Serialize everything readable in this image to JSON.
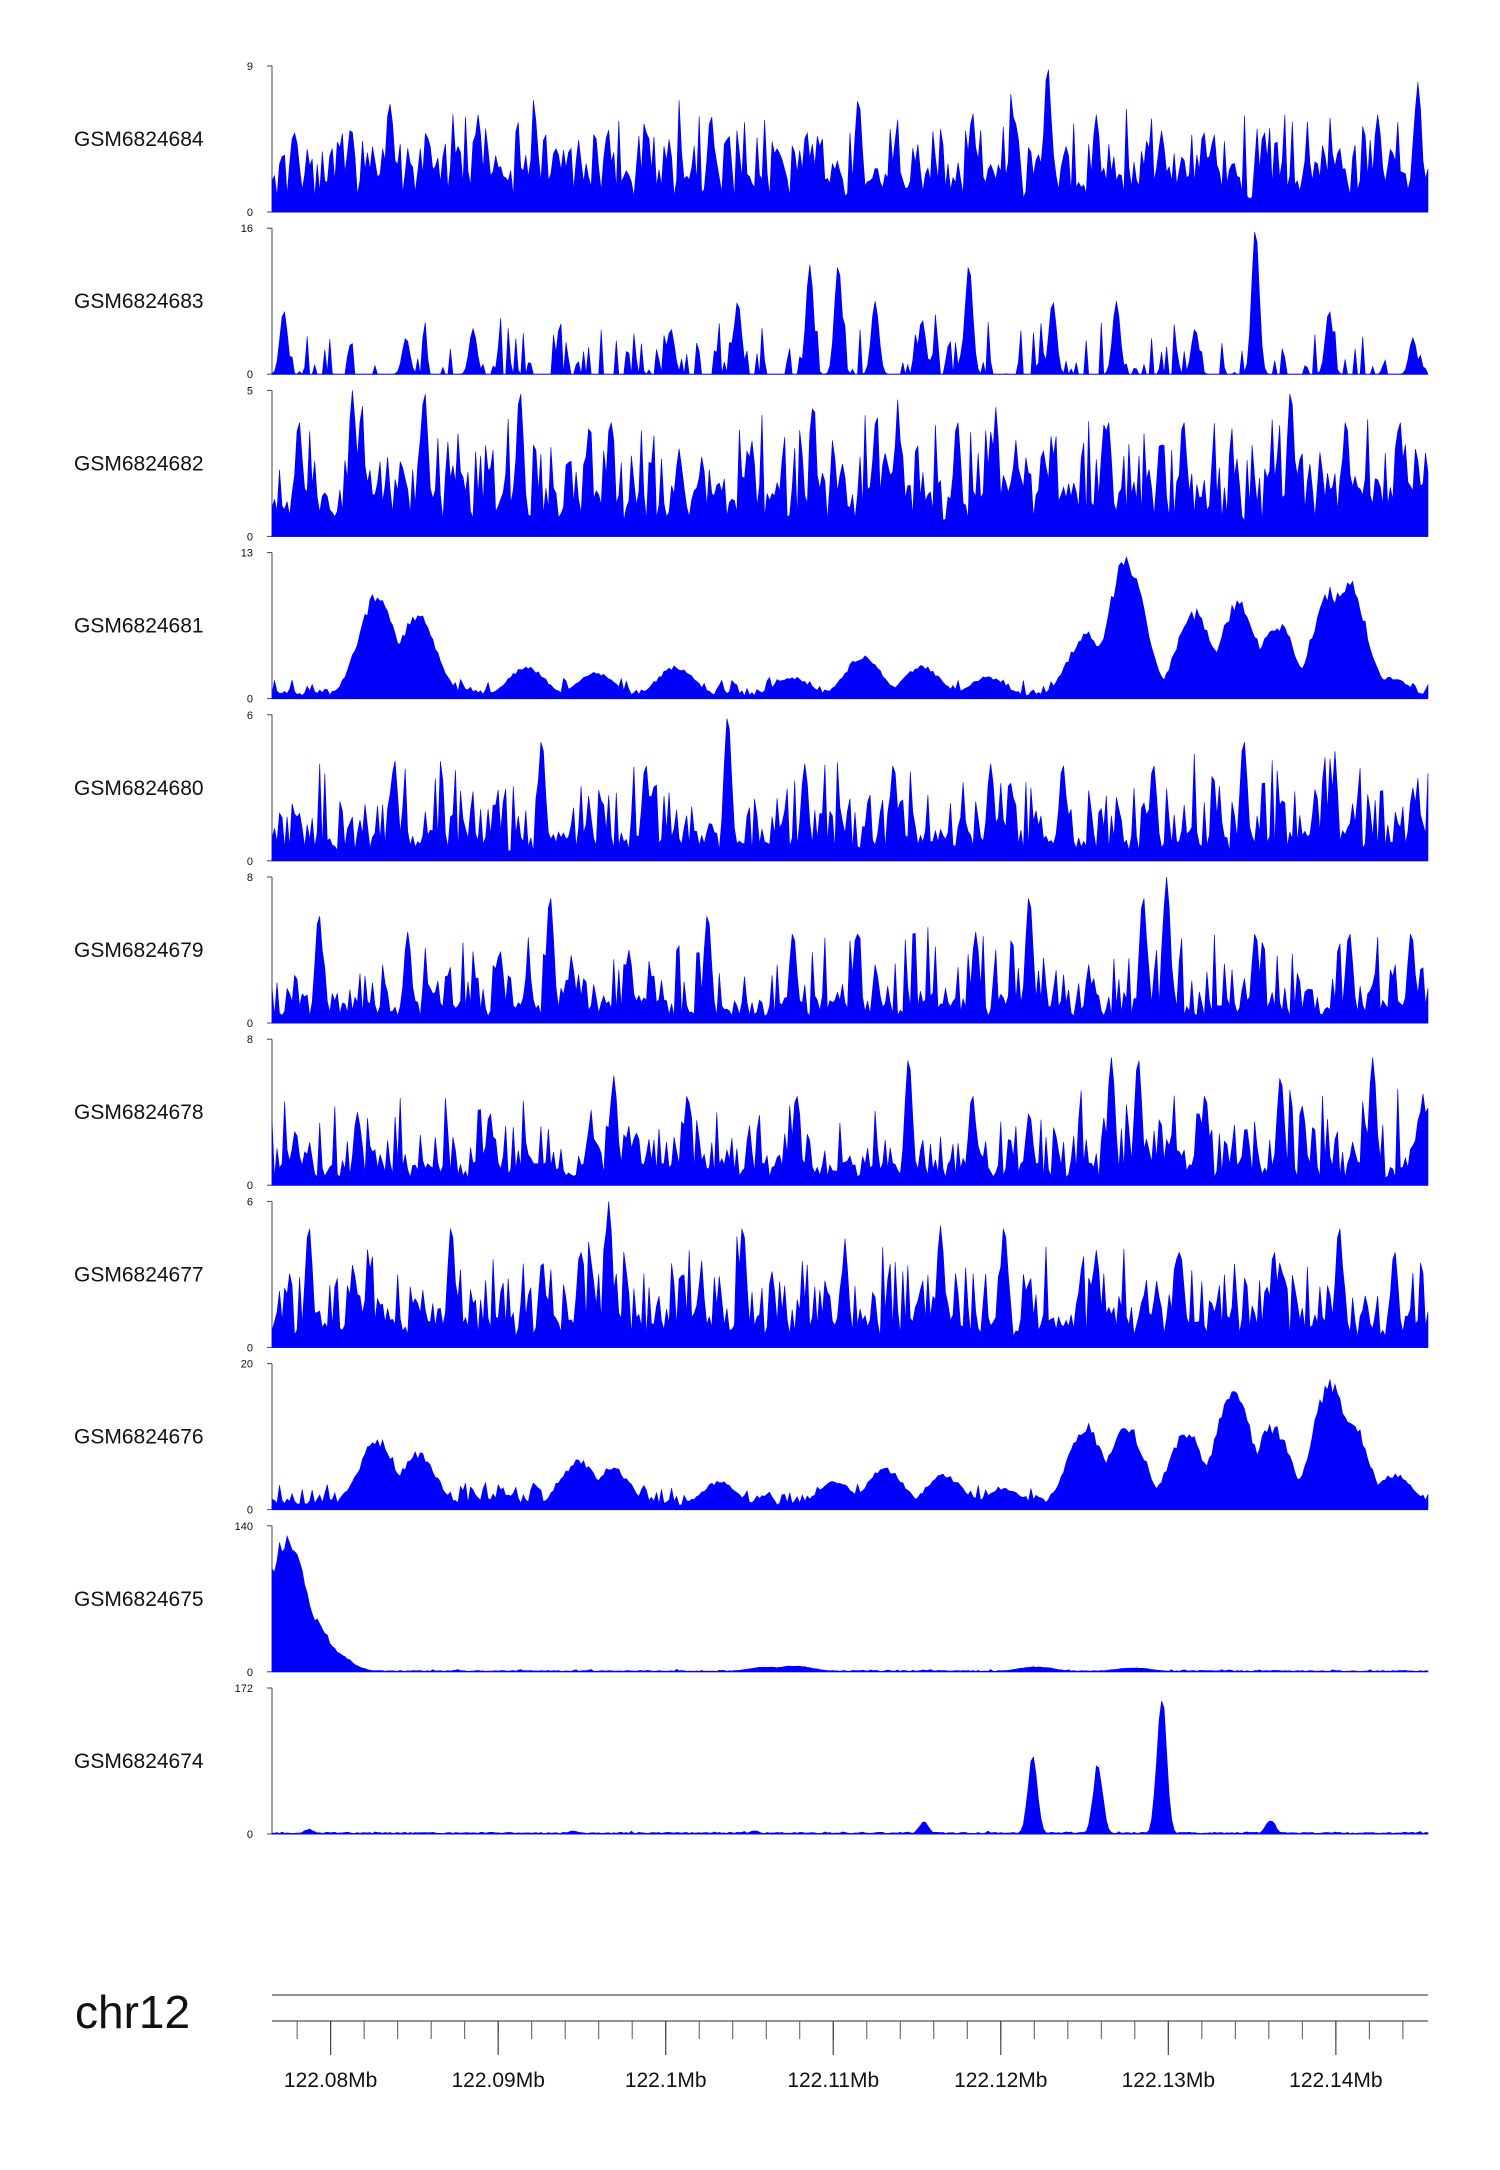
{
  "chart_data": {
    "type": "area",
    "fill_color": "#0000ff",
    "axis_color": "#444444",
    "x_range": [
      122.0765,
      122.1455
    ],
    "tracks": [
      {
        "name": "GSM6824684",
        "ylim": [
          0,
          9
        ],
        "peaks": [
          [
            122.0778,
            5
          ],
          [
            122.0811,
            4
          ],
          [
            122.0836,
            6
          ],
          [
            122.0888,
            6
          ],
          [
            122.0934,
            4
          ],
          [
            122.0989,
            5
          ],
          [
            122.1027,
            6
          ],
          [
            122.1066,
            4
          ],
          [
            122.1084,
            5
          ],
          [
            122.1084,
            5
          ],
          [
            122.1115,
            7
          ],
          [
            122.1183,
            6
          ],
          [
            122.1208,
            6
          ],
          [
            122.1228,
            9
          ],
          [
            122.1257,
            6
          ],
          [
            122.1296,
            5
          ],
          [
            122.1321,
            5
          ],
          [
            122.1357,
            5
          ],
          [
            122.1402,
            4
          ],
          [
            122.1425,
            6
          ],
          [
            122.1449,
            8
          ]
        ],
        "base": 2,
        "noise": 3.2,
        "spike_rate": 0.65,
        "seed": 11
      },
      {
        "name": "GSM6824683",
        "ylim": [
          0,
          16
        ],
        "peaks": [
          [
            122.0772,
            7
          ],
          [
            122.0845,
            4
          ],
          [
            122.0885,
            5
          ],
          [
            122.1003,
            5
          ],
          [
            122.1043,
            8
          ],
          [
            122.1086,
            12
          ],
          [
            122.1103,
            12
          ],
          [
            122.1125,
            8
          ],
          [
            122.1153,
            6
          ],
          [
            122.1181,
            12
          ],
          [
            122.1231,
            8
          ],
          [
            122.1269,
            8
          ],
          [
            122.1316,
            5
          ],
          [
            122.1352,
            16
          ],
          [
            122.1396,
            7
          ],
          [
            122.1446,
            4
          ]
        ],
        "base": 0,
        "noise": 4.5,
        "spike_rate": 0.35,
        "seed": 23
      },
      {
        "name": "GSM6824682",
        "ylim": [
          0,
          5
        ],
        "peaks": [
          [
            122.0781,
            4
          ],
          [
            122.0813,
            5
          ],
          [
            122.0856,
            5
          ],
          [
            122.0913,
            5
          ],
          [
            122.0967,
            4
          ],
          [
            122.1008,
            3
          ],
          [
            122.1049,
            3
          ],
          [
            122.1088,
            4
          ],
          [
            122.1174,
            4
          ],
          [
            122.1225,
            3
          ],
          [
            122.1264,
            4
          ],
          [
            122.1309,
            4
          ],
          [
            122.1373,
            5
          ],
          [
            122.1406,
            4
          ],
          [
            122.1438,
            4
          ]
        ],
        "base": 1.2,
        "noise": 2.4,
        "spike_rate": 0.7,
        "seed": 37
      },
      {
        "name": "GSM6824681",
        "ylim": [
          0,
          13
        ],
        "peaks": [
          [
            122.0828,
            10
          ],
          [
            122.0852,
            8
          ],
          [
            122.0917,
            3
          ],
          [
            122.0958,
            2.5
          ],
          [
            122.1006,
            3
          ],
          [
            122.1075,
            2
          ],
          [
            122.1118,
            4
          ],
          [
            122.1153,
            3
          ],
          [
            122.1192,
            2
          ],
          [
            122.1251,
            6
          ],
          [
            122.1275,
            13
          ],
          [
            122.1316,
            8
          ],
          [
            122.1342,
            9
          ],
          [
            122.1365,
            7
          ],
          [
            122.1397,
            10
          ],
          [
            122.1407,
            11
          ],
          [
            122.1432,
            2
          ]
        ],
        "base": 0.6,
        "noise": 1.2,
        "spike_rate": 0.4,
        "seed": 41,
        "smooth": true
      },
      {
        "name": "GSM6824680",
        "ylim": [
          0,
          6
        ],
        "peaks": [
          [
            122.0781,
            2
          ],
          [
            122.0838,
            4
          ],
          [
            122.0926,
            5
          ],
          [
            122.0988,
            4
          ],
          [
            122.1037,
            6
          ],
          [
            122.1083,
            4
          ],
          [
            122.1136,
            4
          ],
          [
            122.1194,
            4
          ],
          [
            122.1237,
            4
          ],
          [
            122.1291,
            4
          ],
          [
            122.1345,
            5
          ],
          [
            122.1397,
            3
          ],
          [
            122.1446,
            3
          ]
        ],
        "base": 0.9,
        "noise": 2.6,
        "spike_rate": 0.6,
        "seed": 53
      },
      {
        "name": "GSM6824679",
        "ylim": [
          0,
          8
        ],
        "peaks": [
          [
            122.0793,
            6
          ],
          [
            122.0846,
            5
          ],
          [
            122.0901,
            4
          ],
          [
            122.0931,
            7
          ],
          [
            122.0978,
            4
          ],
          [
            122.1025,
            6
          ],
          [
            122.1076,
            5
          ],
          [
            122.1114,
            5
          ],
          [
            122.1185,
            5
          ],
          [
            122.1217,
            7
          ],
          [
            122.1285,
            7
          ],
          [
            122.1299,
            8
          ],
          [
            122.1352,
            5
          ],
          [
            122.1408,
            5
          ],
          [
            122.1445,
            5
          ]
        ],
        "base": 0.9,
        "noise": 3.0,
        "spike_rate": 0.6,
        "seed": 67
      },
      {
        "name": "GSM6824678",
        "ylim": [
          0,
          8
        ],
        "peaks": [
          [
            122.0779,
            3
          ],
          [
            122.0816,
            4
          ],
          [
            122.0895,
            4
          ],
          [
            122.0969,
            6
          ],
          [
            122.1013,
            5
          ],
          [
            122.1078,
            5
          ],
          [
            122.1145,
            7
          ],
          [
            122.1183,
            5
          ],
          [
            122.1217,
            4
          ],
          [
            122.1266,
            7
          ],
          [
            122.1282,
            7
          ],
          [
            122.1322,
            5
          ],
          [
            122.1367,
            6
          ],
          [
            122.1422,
            7
          ],
          [
            122.1452,
            5
          ]
        ],
        "base": 0.9,
        "noise": 3.0,
        "spike_rate": 0.6,
        "seed": 79
      },
      {
        "name": "GSM6824677",
        "ylim": [
          0,
          6
        ],
        "peaks": [
          [
            122.0787,
            5
          ],
          [
            122.0872,
            5
          ],
          [
            122.0949,
            4
          ],
          [
            122.0966,
            6
          ],
          [
            122.1046,
            5
          ],
          [
            122.1107,
            4
          ],
          [
            122.1164,
            5
          ],
          [
            122.1202,
            5
          ],
          [
            122.1257,
            4
          ],
          [
            122.1307,
            4
          ],
          [
            122.1363,
            4
          ],
          [
            122.1402,
            5
          ],
          [
            122.1435,
            4
          ]
        ],
        "base": 1.0,
        "noise": 2.4,
        "spike_rate": 0.7,
        "seed": 83
      },
      {
        "name": "GSM6824676",
        "ylim": [
          0,
          20
        ],
        "peaks": [
          [
            122.0828,
            10
          ],
          [
            122.0852,
            8
          ],
          [
            122.0948,
            7
          ],
          [
            122.0968,
            6
          ],
          [
            122.1032,
            4
          ],
          [
            122.1101,
            4
          ],
          [
            122.1131,
            6
          ],
          [
            122.1166,
            5
          ],
          [
            122.1202,
            3
          ],
          [
            122.1251,
            12
          ],
          [
            122.1275,
            12
          ],
          [
            122.1311,
            11
          ],
          [
            122.1339,
            17
          ],
          [
            122.1362,
            12
          ],
          [
            122.1397,
            18
          ],
          [
            122.1407,
            14
          ],
          [
            122.1435,
            5
          ]
        ],
        "base": 1.5,
        "noise": 1.8,
        "spike_rate": 0.4,
        "seed": 97,
        "smooth": true
      },
      {
        "name": "GSM6824675",
        "ylim": [
          0,
          140
        ],
        "peaks": [
          [
            122.0774,
            138
          ],
          [
            122.0787,
            60
          ],
          [
            122.0798,
            25
          ],
          [
            122.1061,
            5
          ],
          [
            122.1077,
            6
          ],
          [
            122.1221,
            5
          ],
          [
            122.1279,
            4
          ]
        ],
        "base": 1,
        "noise": 1.4,
        "spike_rate": 0.1,
        "seed": 101,
        "smooth": true,
        "decay": [
          122.0772,
          122.0812
        ]
      },
      {
        "name": "GSM6824674",
        "ylim": [
          0,
          172
        ],
        "peaks": [
          [
            122.0787,
            6
          ],
          [
            122.0945,
            4
          ],
          [
            122.1053,
            4
          ],
          [
            122.1154,
            15
          ],
          [
            122.1219,
            94
          ],
          [
            122.1258,
            86
          ],
          [
            122.1296,
            172
          ],
          [
            122.1361,
            18
          ]
        ],
        "base": 1.5,
        "noise": 1.6,
        "spike_rate": 0.1,
        "seed": 113,
        "smooth": true,
        "narrow": true
      }
    ],
    "xaxis": {
      "chrom": "chr12",
      "ticks": [
        122.08,
        122.09,
        122.1,
        122.11,
        122.12,
        122.13,
        122.14
      ],
      "tick_labels": [
        "122.08Mb",
        "122.09Mb",
        "122.1Mb",
        "122.11Mb",
        "122.12Mb",
        "122.13Mb",
        "122.14Mb"
      ],
      "minor_step": 0.002
    }
  }
}
